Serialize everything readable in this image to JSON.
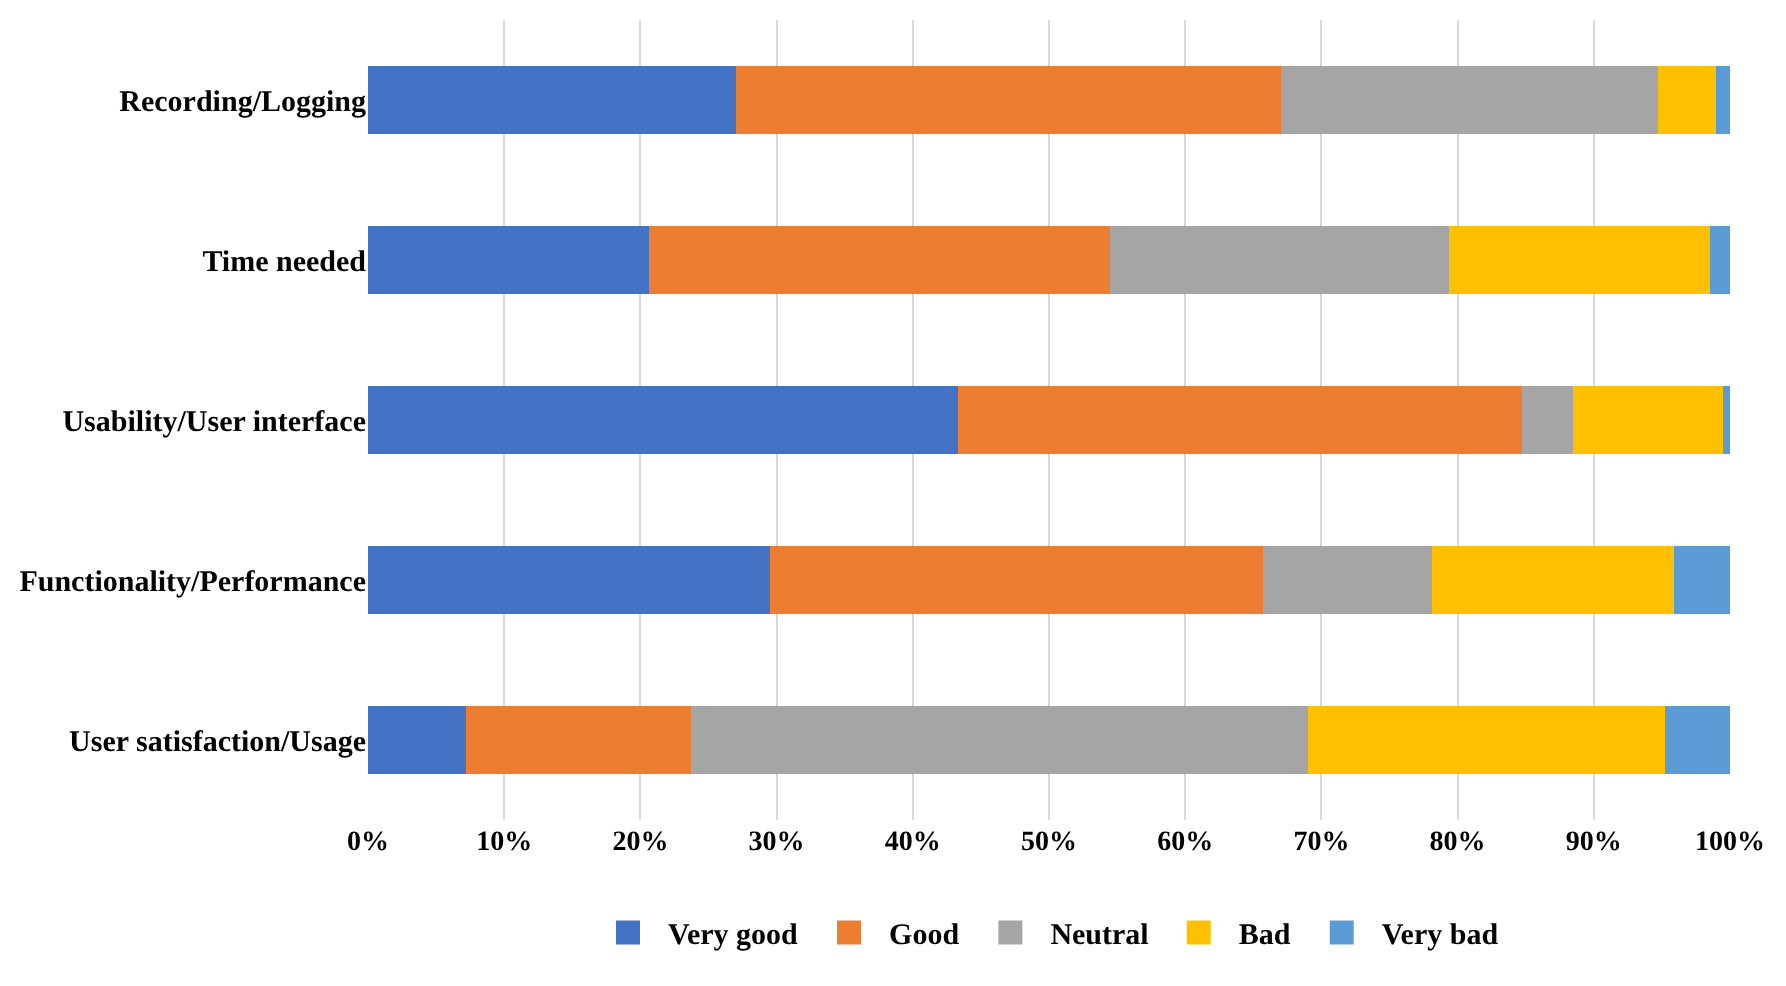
{
  "chart_data": {
    "type": "bar",
    "orientation": "horizontal",
    "stacked": true,
    "categories": [
      "Recording/Logging",
      "Time needed",
      "Usability/User interface",
      "Functionality/Performance",
      "User satisfaction/Usage"
    ],
    "series": [
      {
        "name": "Very good",
        "color": "#4472c4",
        "values": [
          27.0,
          20.6,
          43.3,
          29.5,
          7.2
        ]
      },
      {
        "name": "Good",
        "color": "#ed7d31",
        "values": [
          40.0,
          33.9,
          41.4,
          36.2,
          16.5
        ]
      },
      {
        "name": "Neutral",
        "color": "#a5a5a5",
        "values": [
          27.7,
          24.9,
          3.8,
          12.4,
          45.3
        ]
      },
      {
        "name": "Bad",
        "color": "#ffc000",
        "values": [
          4.3,
          19.1,
          11.0,
          17.8,
          26.2
        ]
      },
      {
        "name": "Very bad",
        "color": "#5b9bd5",
        "values": [
          1.0,
          1.5,
          0.5,
          4.1,
          4.8
        ]
      }
    ],
    "xlim": [
      0,
      100
    ],
    "xticks": [
      {
        "value": 0,
        "label": "0%"
      },
      {
        "value": 10,
        "label": "10%"
      },
      {
        "value": 20,
        "label": "20%"
      },
      {
        "value": 30,
        "label": "30%"
      },
      {
        "value": 40,
        "label": "40%"
      },
      {
        "value": 50,
        "label": "50%"
      },
      {
        "value": 60,
        "label": "60%"
      },
      {
        "value": 70,
        "label": "70%"
      },
      {
        "value": 80,
        "label": "80%"
      },
      {
        "value": 90,
        "label": "90%"
      },
      {
        "value": 100,
        "label": "100%"
      }
    ],
    "grid": "x",
    "legend": "bottom"
  }
}
